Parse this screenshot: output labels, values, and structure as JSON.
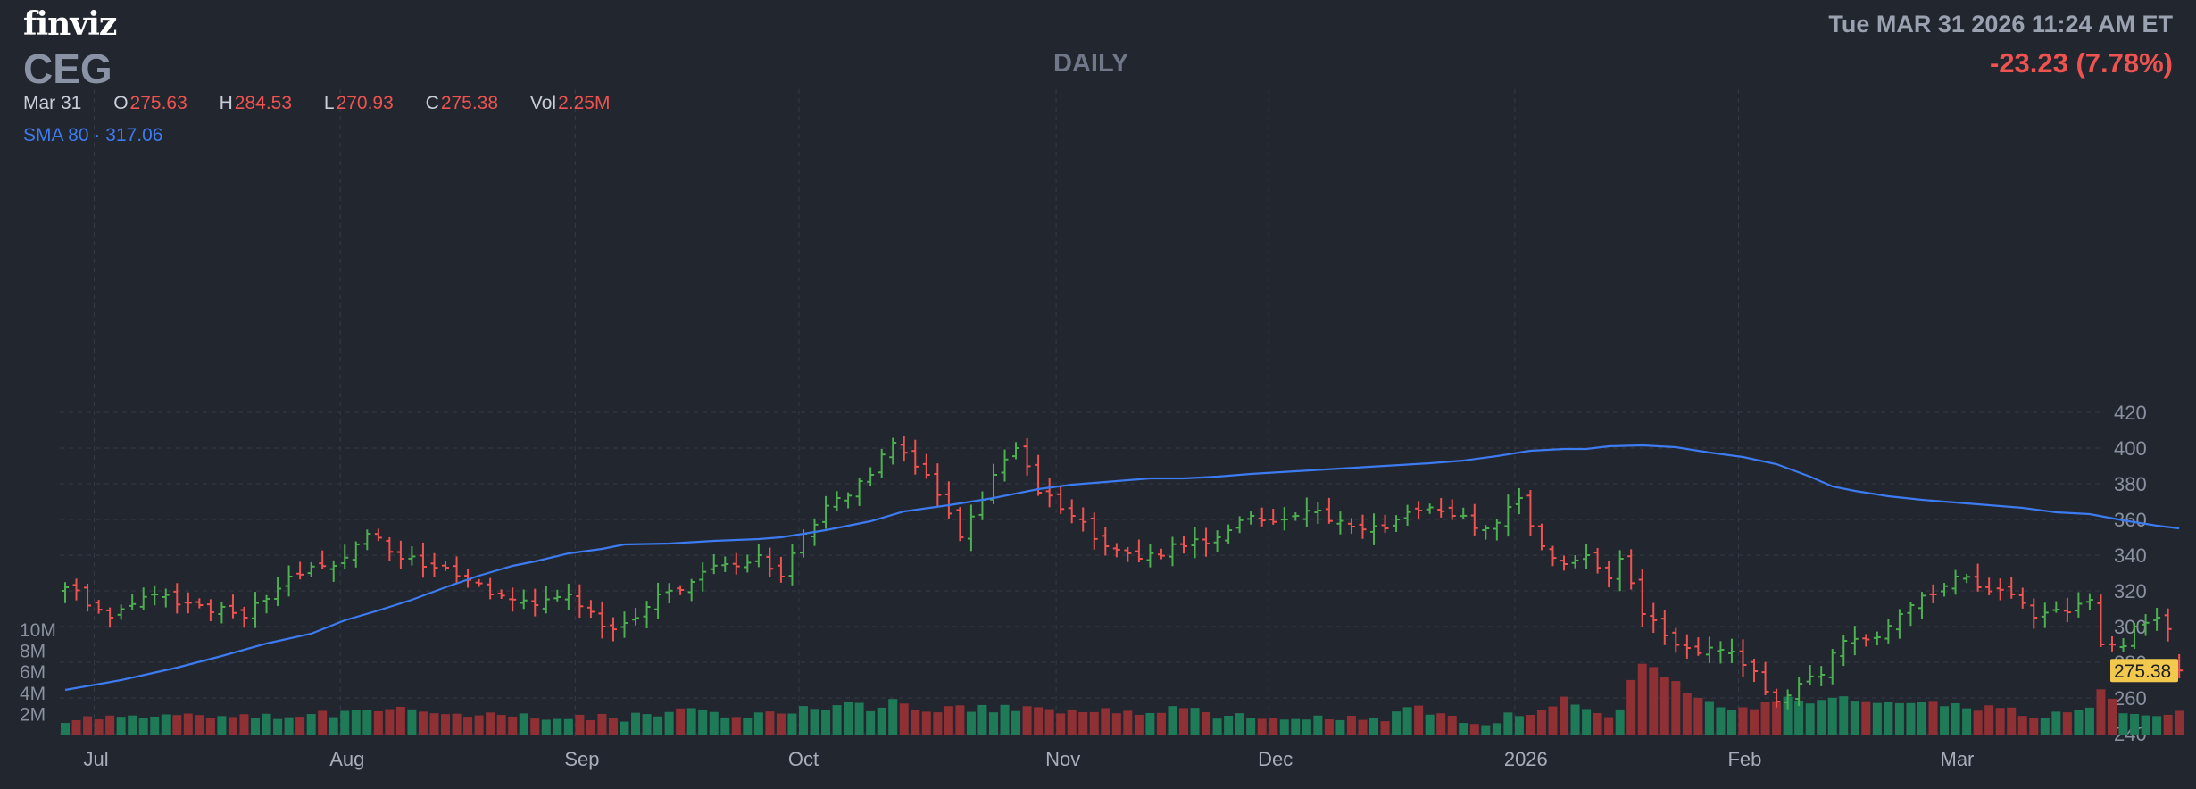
{
  "header": {
    "logo": "finviz",
    "ticker": "CEG",
    "period": "DAILY",
    "datetime": "Tue MAR 31 2026 11:24 AM ET",
    "change": "-23.23 (7.78%)",
    "ohlc": {
      "date": "Mar 31",
      "open_label": "O",
      "open": "275.63",
      "high_label": "H",
      "high": "284.53",
      "low_label": "L",
      "low": "270.93",
      "close_label": "C",
      "close": "275.38",
      "vol_label": "Vol",
      "vol": "2.25M"
    },
    "sma": {
      "label": "SMA 80",
      "sep": "·",
      "value": "317.06"
    }
  },
  "colors": {
    "background": "#22262f",
    "up": "#4caf50",
    "down": "#ef5350",
    "vol_up": "#1f7a58",
    "vol_down": "#8f3035",
    "sma": "#3d7bf0",
    "grid": "#343a47",
    "axis_text": "#8a91a0",
    "price_tag": "#f2c94c"
  },
  "chart_data": {
    "type": "ohlc",
    "title": "",
    "ylim": [
      240,
      420
    ],
    "yticks": [
      240,
      260,
      280,
      300,
      320,
      340,
      360,
      380,
      400,
      420
    ],
    "volume_ticks": [
      "2M",
      "4M",
      "6M",
      "8M",
      "10M"
    ],
    "volume_tick_values": [
      2,
      4,
      6,
      8,
      10
    ],
    "volume_unit": "M",
    "x_labels": [
      {
        "label": "Jul",
        "index": 1
      },
      {
        "label": "Aug",
        "index": 23
      },
      {
        "label": "Sep",
        "index": 44
      },
      {
        "label": "Oct",
        "index": 64
      },
      {
        "label": "Nov",
        "index": 87
      },
      {
        "label": "Dec",
        "index": 106
      },
      {
        "label": "2026",
        "index": 128
      },
      {
        "label": "Feb",
        "index": 148
      },
      {
        "label": "Mar",
        "index": 167
      }
    ],
    "last_price": "275.38",
    "anchors": [
      [
        0,
        322,
        1.5
      ],
      [
        4,
        305,
        1.6
      ],
      [
        8,
        318,
        1.8
      ],
      [
        12,
        312,
        1.6
      ],
      [
        16,
        305,
        1.6
      ],
      [
        20,
        328,
        1.8
      ],
      [
        24,
        334,
        2.0
      ],
      [
        27,
        352,
        2.6
      ],
      [
        30,
        338,
        2.5
      ],
      [
        34,
        333,
        2.0
      ],
      [
        38,
        318,
        1.8
      ],
      [
        42,
        312,
        1.6
      ],
      [
        45,
        318,
        1.6
      ],
      [
        48,
        300,
        1.7
      ],
      [
        50,
        302,
        1.5
      ],
      [
        53,
        318,
        2.0
      ],
      [
        56,
        325,
        2.2
      ],
      [
        59,
        335,
        1.8
      ],
      [
        62,
        340,
        2.0
      ],
      [
        64,
        328,
        2.0
      ],
      [
        66,
        352,
        2.4
      ],
      [
        69,
        372,
        2.8
      ],
      [
        72,
        385,
        2.6
      ],
      [
        74,
        403,
        3.0
      ],
      [
        77,
        385,
        2.4
      ],
      [
        80,
        350,
        2.6
      ],
      [
        83,
        385,
        2.4
      ],
      [
        85,
        400,
        2.6
      ],
      [
        87,
        375,
        2.2
      ],
      [
        90,
        362,
        2.2
      ],
      [
        93,
        345,
        2.2
      ],
      [
        96,
        338,
        2.0
      ],
      [
        100,
        345,
        2.4
      ],
      [
        103,
        350,
        1.8
      ],
      [
        106,
        362,
        1.6
      ],
      [
        109,
        360,
        1.4
      ],
      [
        112,
        365,
        1.6
      ],
      [
        115,
        356,
        1.6
      ],
      [
        118,
        355,
        1.6
      ],
      [
        121,
        365,
        2.6
      ],
      [
        124,
        362,
        1.6
      ],
      [
        127,
        355,
        1.2
      ],
      [
        130,
        372,
        2.0
      ],
      [
        132,
        345,
        2.2
      ],
      [
        134,
        335,
        3.2
      ],
      [
        136,
        340,
        2.2
      ],
      [
        138,
        327,
        2.0
      ],
      [
        139,
        338,
        2.6
      ],
      [
        141,
        307,
        7.0
      ],
      [
        143,
        295,
        5.8
      ],
      [
        145,
        288,
        4.2
      ],
      [
        148,
        287,
        2.6
      ],
      [
        151,
        275,
        2.8
      ],
      [
        153,
        258,
        3.5
      ],
      [
        155,
        268,
        3.0
      ],
      [
        157,
        273,
        3.0
      ],
      [
        159,
        292,
        3.5
      ],
      [
        162,
        294,
        3.0
      ],
      [
        165,
        312,
        2.8
      ],
      [
        167,
        318,
        2.8
      ],
      [
        169,
        328,
        2.6
      ],
      [
        171,
        322,
        2.6
      ],
      [
        174,
        318,
        2.2
      ],
      [
        176,
        305,
        1.8
      ],
      [
        179,
        308,
        2.0
      ],
      [
        181,
        315,
        2.6
      ],
      [
        182,
        290,
        4.0
      ],
      [
        184,
        289,
        2.2
      ],
      [
        185,
        300,
        1.8
      ],
      [
        187,
        305,
        2.0
      ],
      [
        188,
        298.6,
        1.8
      ],
      [
        189,
        275.38,
        2.25
      ]
    ],
    "sma80": [
      [
        0,
        311
      ],
      [
        5,
        300
      ],
      [
        10,
        286
      ],
      [
        14,
        273
      ],
      [
        18,
        259
      ],
      [
        22,
        248
      ],
      [
        25,
        233
      ],
      [
        28,
        222
      ],
      [
        31,
        210
      ],
      [
        34,
        196
      ],
      [
        37,
        183
      ],
      [
        40,
        172
      ],
      [
        42,
        167
      ],
      [
        45,
        158
      ],
      [
        48,
        153
      ],
      [
        50,
        148
      ],
      [
        54,
        147
      ],
      [
        58,
        144
      ],
      [
        62,
        142
      ],
      [
        64,
        140
      ],
      [
        68,
        132
      ],
      [
        72,
        122
      ],
      [
        75,
        111
      ],
      [
        79,
        104
      ],
      [
        83,
        96
      ],
      [
        87,
        86
      ],
      [
        90,
        81
      ],
      [
        94,
        77
      ],
      [
        97,
        74
      ],
      [
        100,
        74
      ],
      [
        103,
        72
      ],
      [
        106,
        69
      ],
      [
        110,
        66
      ],
      [
        114,
        63
      ],
      [
        118,
        60
      ],
      [
        122,
        57
      ],
      [
        125,
        54
      ],
      [
        128,
        49
      ],
      [
        131,
        43
      ],
      [
        134,
        41
      ],
      [
        136,
        41
      ],
      [
        138,
        38
      ],
      [
        141,
        37
      ],
      [
        144,
        39
      ],
      [
        147,
        45
      ],
      [
        150,
        50
      ],
      [
        153,
        58
      ],
      [
        156,
        72
      ],
      [
        158,
        83
      ],
      [
        160,
        88
      ],
      [
        163,
        94
      ],
      [
        166,
        98
      ],
      [
        169,
        101
      ],
      [
        172,
        104
      ],
      [
        175,
        107
      ],
      [
        178,
        112
      ],
      [
        181,
        114
      ],
      [
        184,
        121
      ],
      [
        187,
        127
      ],
      [
        189,
        130
      ]
    ]
  }
}
